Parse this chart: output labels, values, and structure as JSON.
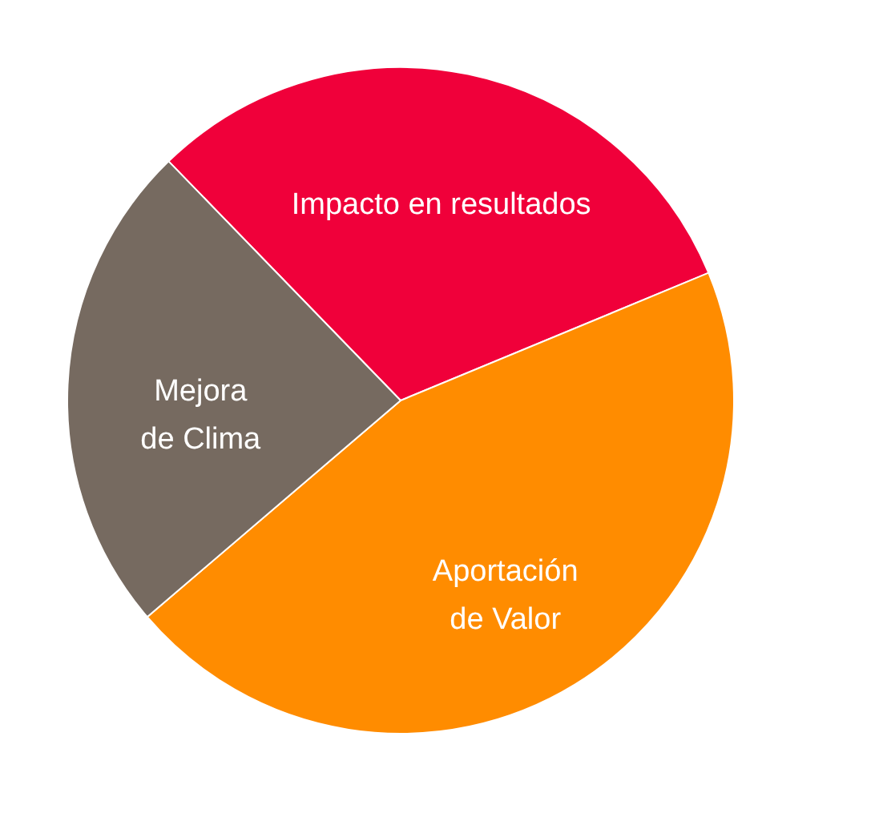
{
  "chart_data": {
    "type": "pie",
    "categories": [
      "Impacto en resultados",
      "Aportación de Valor",
      "Mejora de Clima"
    ],
    "values": [
      31,
      45,
      24
    ],
    "colors": [
      "#f0003a",
      "#ff8c00",
      "#766a60"
    ],
    "legend": false
  }
}
